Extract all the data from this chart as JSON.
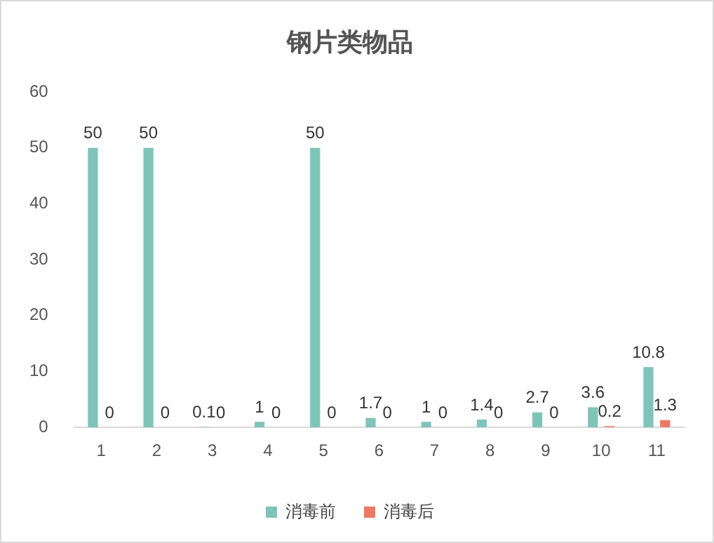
{
  "chart_data": {
    "type": "bar",
    "title": "钢片类物品",
    "categories": [
      "1",
      "2",
      "3",
      "4",
      "5",
      "6",
      "7",
      "8",
      "9",
      "10",
      "11"
    ],
    "series": [
      {
        "name": "消毒前",
        "color": "#7fc4b9",
        "values": [
          50,
          50,
          0.1,
          1,
          50,
          1.7,
          1,
          1.4,
          2.7,
          3.6,
          10.8
        ]
      },
      {
        "name": "消毒后",
        "color": "#ec7a63",
        "values": [
          0,
          0,
          0,
          0,
          0,
          0,
          0,
          0,
          0,
          0.2,
          1.3
        ]
      }
    ],
    "ylim": [
      0,
      60
    ],
    "yticks": [
      0,
      10,
      20,
      30,
      40,
      50,
      60
    ],
    "grid": false,
    "legend": "bottom",
    "data_labels": true
  }
}
